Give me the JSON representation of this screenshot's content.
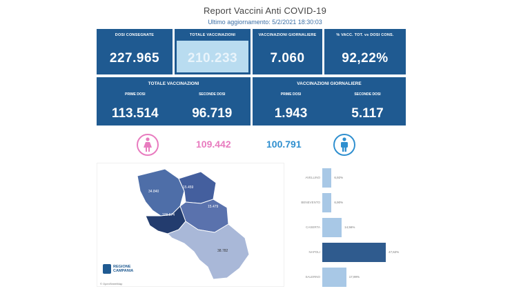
{
  "header": {
    "title": "Report Vaccini Anti COVID-19",
    "subtitle": "Ultimo aggiornamento: 5/2/2021 18:30:03"
  },
  "kpis": [
    {
      "label": "DOSI CONSEGNATE",
      "value": "227.965"
    },
    {
      "label": "TOTALE VACCINAZIONI",
      "value": "210.233"
    },
    {
      "label": "VACCINAZIONI GIORNALIERE",
      "value": "7.060"
    },
    {
      "label": "% VACC. TOT. vs DOSI CONS.",
      "value": "92,22%"
    }
  ],
  "panels": {
    "total": {
      "title": "TOTALE VACCINAZIONI",
      "first_label": "PRIME DOSI",
      "first_value": "113.514",
      "second_label": "SECONDE DOSI",
      "second_value": "96.719"
    },
    "daily": {
      "title": "VACCINAZIONI GIORNALIERE",
      "first_label": "PRIME DOSI",
      "first_value": "1.943",
      "second_label": "SECONDE DOSI",
      "second_value": "5.117"
    }
  },
  "gender": {
    "female_value": "109.442",
    "male_value": "100.791",
    "female_color": "#e87bbf",
    "male_color": "#2f8fcf",
    "female_icon": "female-icon",
    "male_icon": "male-icon"
  },
  "map": {
    "caserta": "34.840",
    "benevento": "15.459",
    "avellino": "15.479",
    "napoli": "109.574",
    "salerno": "38.782",
    "logo_line1": "REGIONE",
    "logo_line2": "CAMPANIA",
    "attribution": "© OpenStreetMap"
  },
  "chart_data": {
    "type": "bar",
    "orientation": "horizontal",
    "categories": [
      "AVELLINO",
      "BENEVENTO",
      "CASERTA",
      "NAPOLI",
      "SALERNO"
    ],
    "values": [
      6.92,
      6.9,
      14.56,
      47.62,
      17.99
    ],
    "value_labels": [
      "6,92%",
      "6,90%",
      "14,56%",
      "47,62%",
      "17,99%"
    ],
    "colors": [
      "#a8c8e6",
      "#a8c8e6",
      "#a8c8e6",
      "#2f5b8e",
      "#a8c8e6"
    ]
  }
}
